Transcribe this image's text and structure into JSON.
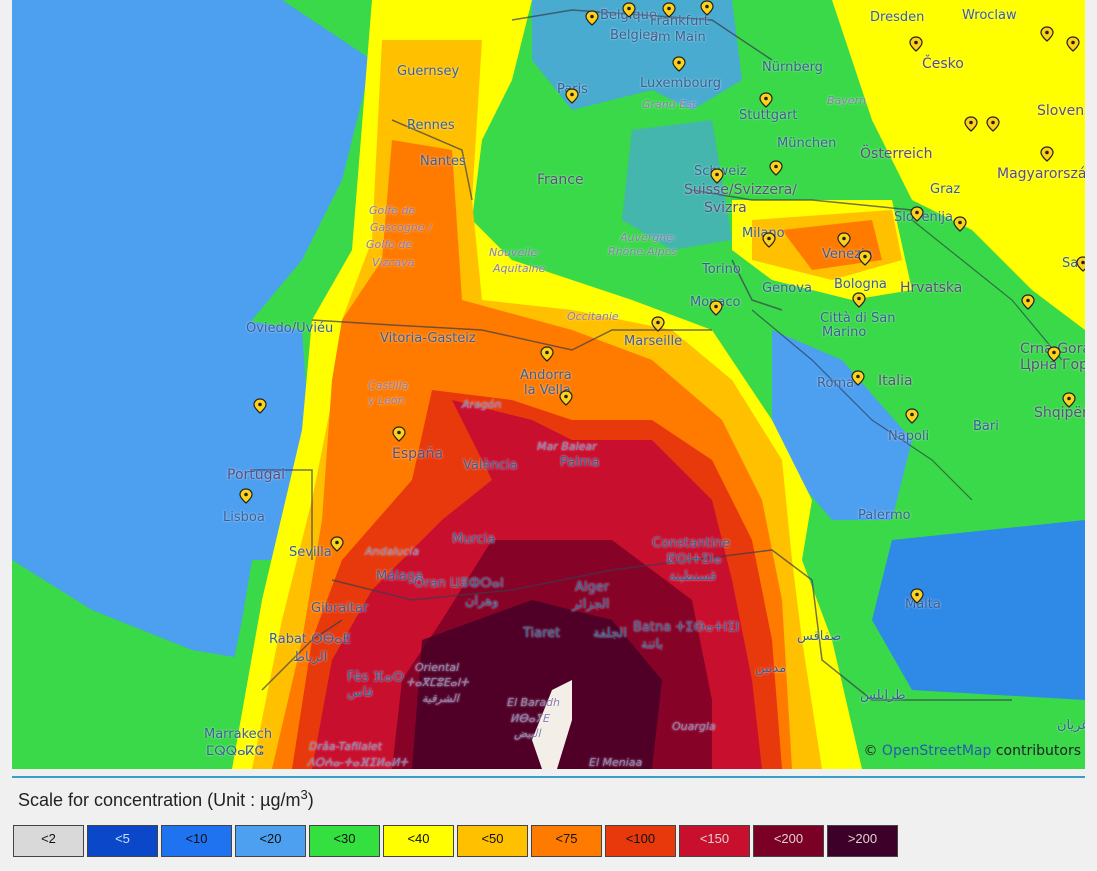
{
  "map": {
    "attribution_prefix": "© ",
    "attribution_link": "OpenStreetMap",
    "attribution_suffix": " contributors",
    "places": [
      {
        "text": "Belgique",
        "kind": "city"
      },
      {
        "text": "Belgien",
        "kind": "city"
      },
      {
        "text": "Frankfurt",
        "kind": "city"
      },
      {
        "text": "am Main",
        "kind": "city"
      },
      {
        "text": "Dresden",
        "kind": "city"
      },
      {
        "text": "Wroclaw",
        "kind": "city"
      },
      {
        "text": "Česko",
        "kind": "country"
      },
      {
        "text": "Guernsey",
        "kind": "city"
      },
      {
        "text": "Luxembourg",
        "kind": "city"
      },
      {
        "text": "Nürnberg",
        "kind": "city"
      },
      {
        "text": "Paris",
        "kind": "city"
      },
      {
        "text": "Grand Est",
        "kind": "region"
      },
      {
        "text": "Stuttgart",
        "kind": "city"
      },
      {
        "text": "Bayern",
        "kind": "region"
      },
      {
        "text": "Slovensko",
        "kind": "country"
      },
      {
        "text": "Rennes",
        "kind": "city"
      },
      {
        "text": "München",
        "kind": "city"
      },
      {
        "text": "Nantes",
        "kind": "city"
      },
      {
        "text": "Österreich",
        "kind": "country"
      },
      {
        "text": "Magyarország",
        "kind": "country"
      },
      {
        "text": "France",
        "kind": "country"
      },
      {
        "text": "Schweiz",
        "kind": "city"
      },
      {
        "text": "Suisse/Svizzera/",
        "kind": "country"
      },
      {
        "text": "Svizra",
        "kind": "country"
      },
      {
        "text": "Graz",
        "kind": "city"
      },
      {
        "text": "Golfe de",
        "kind": "region"
      },
      {
        "text": "Gascogne /",
        "kind": "region"
      },
      {
        "text": "Golfo de",
        "kind": "region"
      },
      {
        "text": "Vizcaya",
        "kind": "region"
      },
      {
        "text": "Slovenija",
        "kind": "city"
      },
      {
        "text": "Auvergne-",
        "kind": "region"
      },
      {
        "text": "Rhône-Alpes",
        "kind": "region"
      },
      {
        "text": "Milano",
        "kind": "city"
      },
      {
        "text": "Venezia",
        "kind": "city"
      },
      {
        "text": "Nouvelle-",
        "kind": "region"
      },
      {
        "text": "Aquitaine",
        "kind": "region"
      },
      {
        "text": "Torino",
        "kind": "city"
      },
      {
        "text": "Hrvatska",
        "kind": "country"
      },
      {
        "text": "Genova",
        "kind": "city"
      },
      {
        "text": "Bologna",
        "kind": "city"
      },
      {
        "text": "Monaco",
        "kind": "city"
      },
      {
        "text": "Sarajevo",
        "kind": "city"
      },
      {
        "text": "Occitanie",
        "kind": "region"
      },
      {
        "text": "Città di San",
        "kind": "city"
      },
      {
        "text": "Marino",
        "kind": "city"
      },
      {
        "text": "Oviedo/Uviéu",
        "kind": "city"
      },
      {
        "text": "Vitoria-Gasteiz",
        "kind": "city"
      },
      {
        "text": "Marseille",
        "kind": "city"
      },
      {
        "text": "Crna Gora",
        "kind": "country"
      },
      {
        "text": "Црна Гора",
        "kind": "country"
      },
      {
        "text": "Andorra",
        "kind": "city"
      },
      {
        "text": "la Vella",
        "kind": "city"
      },
      {
        "text": "Roma",
        "kind": "city"
      },
      {
        "text": "Italia",
        "kind": "country"
      },
      {
        "text": "Castilla",
        "kind": "region"
      },
      {
        "text": "y León",
        "kind": "region"
      },
      {
        "text": "Aragón",
        "kind": "region"
      },
      {
        "text": "Shqipëria",
        "kind": "country"
      },
      {
        "text": "Napoli",
        "kind": "city"
      },
      {
        "text": "España",
        "kind": "country"
      },
      {
        "text": "Mar Balear",
        "kind": "region"
      },
      {
        "text": "Bari",
        "kind": "city"
      },
      {
        "text": "València",
        "kind": "city"
      },
      {
        "text": "Palma",
        "kind": "city"
      },
      {
        "text": "Portugal",
        "kind": "country"
      },
      {
        "text": "Lisboa",
        "kind": "city"
      },
      {
        "text": "Palermo",
        "kind": "city"
      },
      {
        "text": "Murcia",
        "kind": "city"
      },
      {
        "text": "Sevilla",
        "kind": "city"
      },
      {
        "text": "Andalucía",
        "kind": "region"
      },
      {
        "text": "Constantine",
        "kind": "city"
      },
      {
        "text": "ⵇⵙⵏⵜⵉⵏⴰ",
        "kind": "city"
      },
      {
        "text": "قسنطينة",
        "kind": "city"
      },
      {
        "text": "Málaga",
        "kind": "city"
      },
      {
        "text": "Oran ⵡⴻⵀⵔⴰⵏ",
        "kind": "city"
      },
      {
        "text": "وهران",
        "kind": "city"
      },
      {
        "text": "Alger",
        "kind": "city"
      },
      {
        "text": "الجزائر",
        "kind": "city"
      },
      {
        "text": "Gibraltar",
        "kind": "city"
      },
      {
        "text": "Malta",
        "kind": "city"
      },
      {
        "text": "Tiaret",
        "kind": "city"
      },
      {
        "text": "الجلفة",
        "kind": "city"
      },
      {
        "text": "Batna ⵜⵉⴱⴰⵜⵏⵉⵏ",
        "kind": "city"
      },
      {
        "text": "باتنة",
        "kind": "city"
      },
      {
        "text": "Rabat ⵔⴱⴰⵟ",
        "kind": "city"
      },
      {
        "text": "الرباط",
        "kind": "city"
      },
      {
        "text": "صفاقس",
        "kind": "city"
      },
      {
        "text": "Fès ⴼⴰⵙ",
        "kind": "city"
      },
      {
        "text": "فاس",
        "kind": "city"
      },
      {
        "text": "Oriental",
        "kind": "region"
      },
      {
        "text": "ⵜⴰⴳⵎⵓⴹⴰⵏⵜ",
        "kind": "region"
      },
      {
        "text": "الشرقية",
        "kind": "region"
      },
      {
        "text": "مدنين",
        "kind": "city"
      },
      {
        "text": "طرابلس",
        "kind": "city"
      },
      {
        "text": "El Baradh",
        "kind": "region"
      },
      {
        "text": "ⵍⴱⴰⵢⴹ",
        "kind": "region"
      },
      {
        "text": "البيض",
        "kind": "region"
      },
      {
        "text": "Marrakech",
        "kind": "city"
      },
      {
        "text": "ⵎⵕⵕⴰⴽⵛ",
        "kind": "city"
      },
      {
        "text": "Drâa-Tafilalet",
        "kind": "region"
      },
      {
        "text": "ⴷⵔⵄⴰ-ⵜⴰⴼⵉⵍⴰⵍⵜ",
        "kind": "region"
      },
      {
        "text": "Ouargla",
        "kind": "region"
      },
      {
        "text": "El Meniaa",
        "kind": "region"
      },
      {
        "text": "غريان",
        "kind": "city"
      }
    ]
  },
  "scale": {
    "title_prefix": "Scale for concentration (Unit :  µg/m",
    "title_exponent": "3",
    "title_suffix": ")",
    "bins": [
      {
        "label": "<2",
        "color": "#d9d9d9"
      },
      {
        "label": "<5",
        "color": "#0a48c9"
      },
      {
        "label": "<10",
        "color": "#1f72f0"
      },
      {
        "label": "<20",
        "color": "#4d9ff0"
      },
      {
        "label": "<30",
        "color": "#33e040"
      },
      {
        "label": "<40",
        "color": "#ffff00"
      },
      {
        "label": "<50",
        "color": "#ffc000"
      },
      {
        "label": "<75",
        "color": "#ff7b00"
      },
      {
        "label": "<100",
        "color": "#e8390c"
      },
      {
        "label": "<150",
        "color": "#c8102e"
      },
      {
        "label": "<200",
        "color": "#7b0026"
      },
      {
        "label": ">200",
        "color": "#3d0028"
      }
    ]
  }
}
